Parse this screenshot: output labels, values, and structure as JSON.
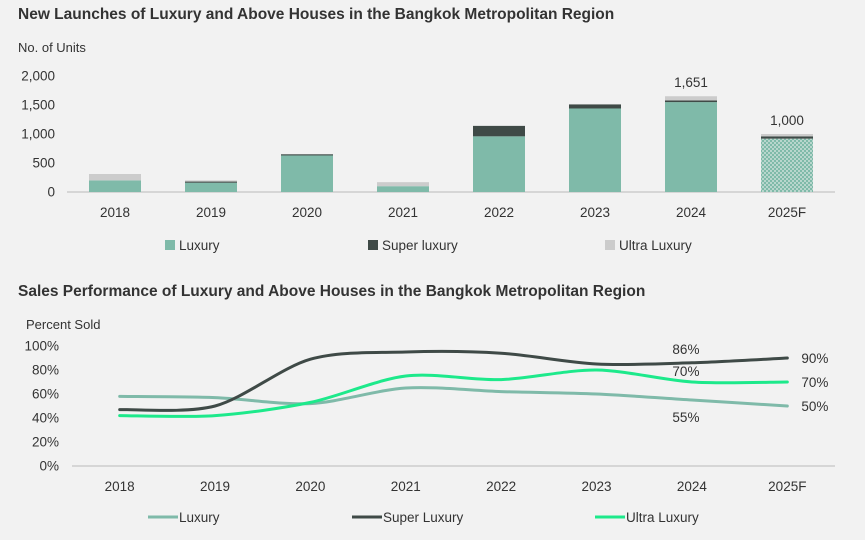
{
  "chart_data": [
    {
      "type": "bar",
      "stacked": true,
      "title": "New Launches of Luxury and Above Houses in the Bangkok Metropolitan Region",
      "ylabel": "No. of Units",
      "xlabel": "",
      "categories": [
        "2018",
        "2019",
        "2020",
        "2021",
        "2022",
        "2023",
        "2024",
        "2025F"
      ],
      "ylim": [
        0,
        2000
      ],
      "yticks": [
        0,
        500,
        1000,
        1500,
        2000
      ],
      "ytick_labels": [
        "0",
        "500",
        "1,000",
        "1,500",
        "2,000"
      ],
      "forecast_category": "2025F",
      "series": [
        {
          "name": "Luxury",
          "color": "#7fbaa9",
          "values": [
            200,
            160,
            630,
            100,
            960,
            1440,
            1550,
            920
          ]
        },
        {
          "name": "Super luxury",
          "color": "#3f4a47",
          "values": [
            0,
            20,
            20,
            0,
            180,
            70,
            30,
            40
          ]
        },
        {
          "name": "Ultra Luxury",
          "color": "#cccccc",
          "values": [
            110,
            20,
            0,
            70,
            0,
            0,
            71,
            40
          ]
        }
      ],
      "annotations": [
        {
          "category": "2024",
          "text": "1,651"
        },
        {
          "category": "2025F",
          "text": "1,000"
        }
      ],
      "legend_position": "bottom"
    },
    {
      "type": "line",
      "title": "Sales Performance of Luxury and Above Houses in the Bangkok Metropolitan Region",
      "ylabel": "Percent Sold",
      "xlabel": "",
      "categories": [
        "2018",
        "2019",
        "2020",
        "2021",
        "2022",
        "2023",
        "2024",
        "2025F"
      ],
      "ylim": [
        0,
        100
      ],
      "yticks": [
        0,
        20,
        40,
        60,
        80,
        100
      ],
      "ytick_labels": [
        "0%",
        "20%",
        "40%",
        "60%",
        "80%",
        "100%"
      ],
      "series": [
        {
          "name": "Luxury",
          "color": "#7fbaa9",
          "values": [
            58,
            57,
            52,
            65,
            62,
            60,
            55,
            50
          ]
        },
        {
          "name": "Super Luxury",
          "color": "#3f4a47",
          "values": [
            47,
            50,
            89,
            95,
            94,
            85,
            86,
            90
          ]
        },
        {
          "name": "Ultra Luxury",
          "color": "#1de98b",
          "values": [
            42,
            42,
            53,
            75,
            72,
            80,
            70,
            70
          ]
        }
      ],
      "annotations": [
        {
          "category": "2024",
          "text": "86%"
        },
        {
          "category": "2024",
          "text": "70%"
        },
        {
          "category": "2024",
          "text": "55%"
        },
        {
          "category": "2025F",
          "text": "90%"
        },
        {
          "category": "2025F",
          "text": "70%"
        },
        {
          "category": "2025F",
          "text": "50%"
        }
      ],
      "legend_position": "bottom"
    }
  ]
}
